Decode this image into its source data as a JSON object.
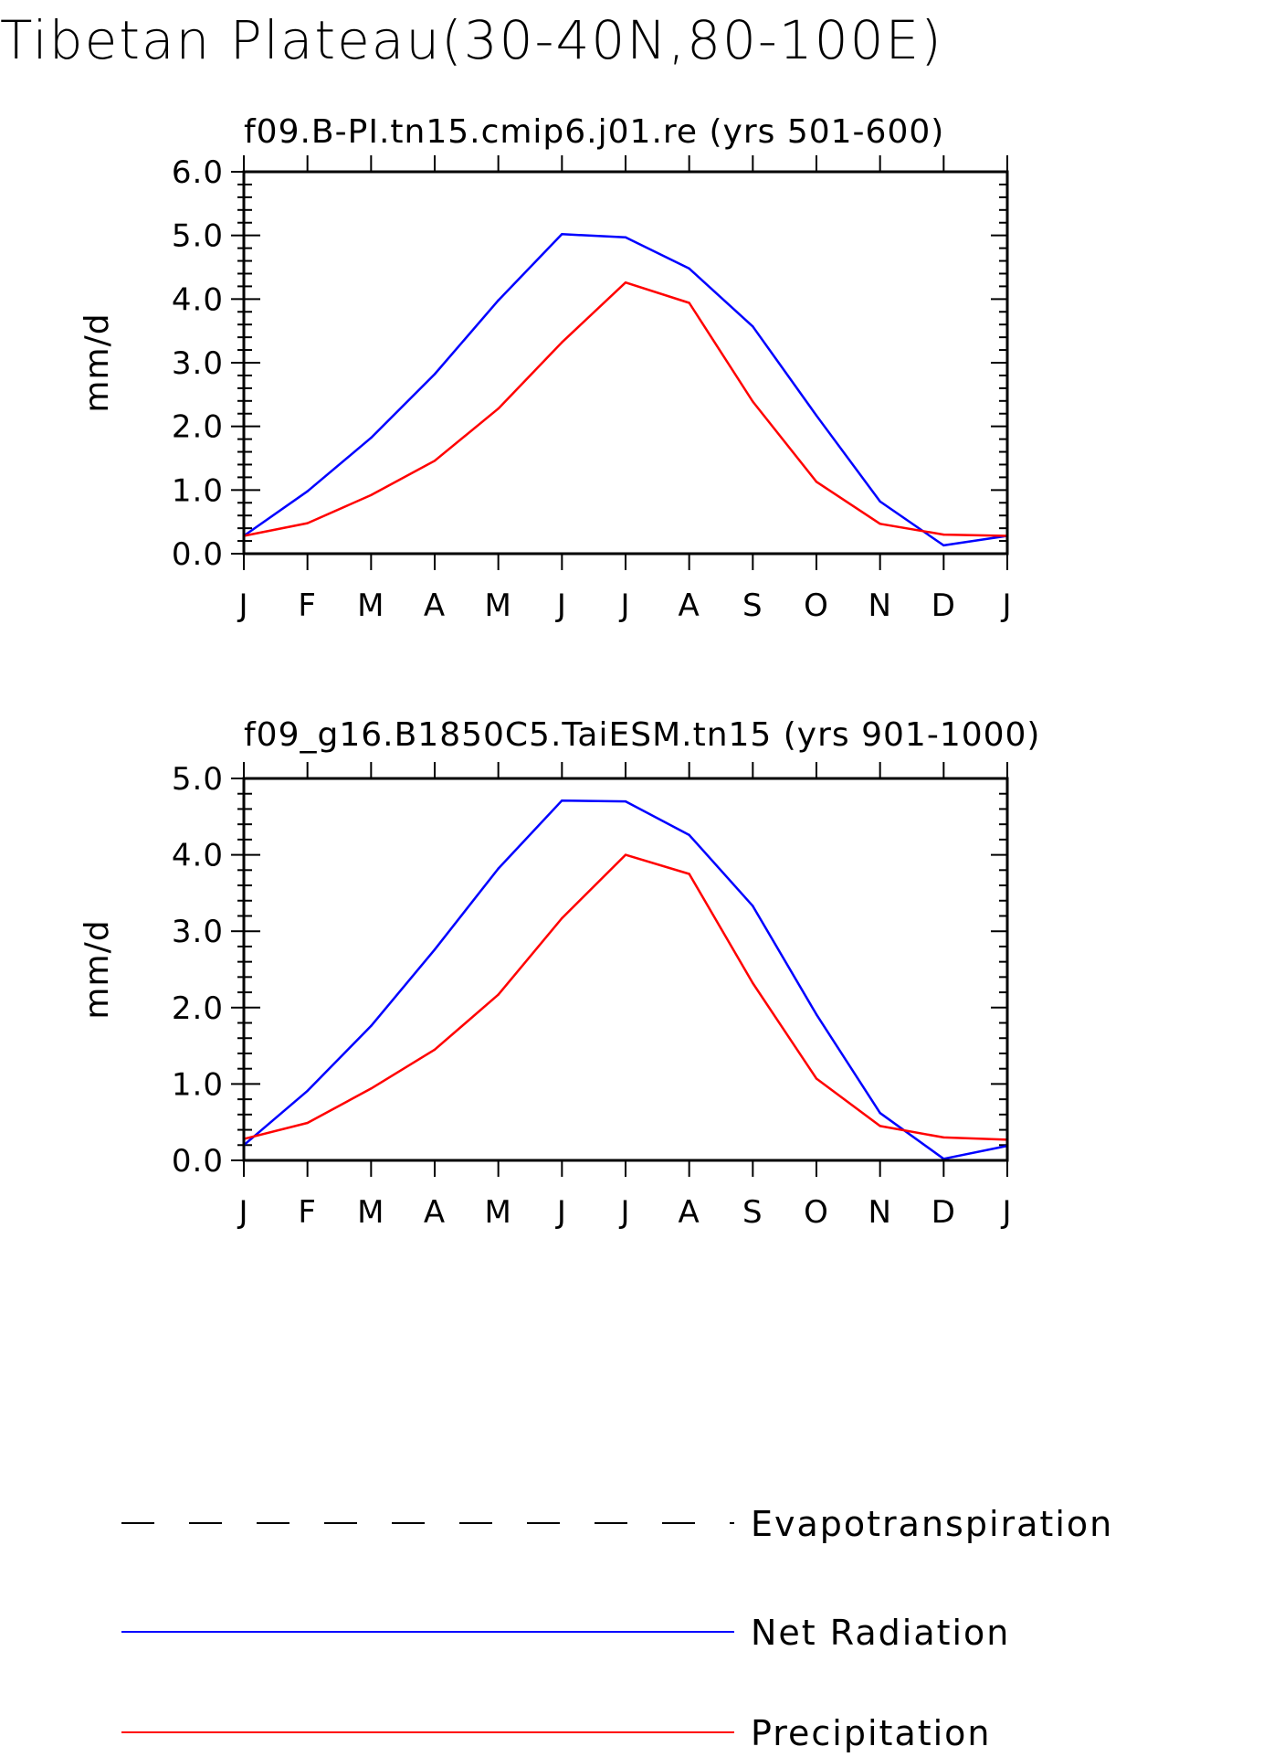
{
  "figure": {
    "title": "Tibetan Plateau(30-40N,80-100E)"
  },
  "colors": {
    "evapotranspiration": "#000000",
    "net_radiation": "#0000ff",
    "precipitation": "#ff0000",
    "axes": "#000000"
  },
  "legend": {
    "placement": "bottom",
    "items": [
      {
        "label": "Evapotranspiration",
        "color": "#000000",
        "style": "dashed"
      },
      {
        "label": "Net Radiation",
        "color": "#0000ff",
        "style": "solid"
      },
      {
        "label": "Precipitation",
        "color": "#ff0000",
        "style": "solid"
      }
    ]
  },
  "chart_data": [
    {
      "type": "line",
      "title": "f09.B-PI.tn15.cmip6.j01.re (yrs 501-600)",
      "xlabel": "",
      "ylabel": "mm/d",
      "categories": [
        "J",
        "F",
        "M",
        "A",
        "M",
        "J",
        "J",
        "A",
        "S",
        "O",
        "N",
        "D",
        "J"
      ],
      "ylim": [
        0,
        6
      ],
      "yticks": [
        "0.0",
        "1.0",
        "2.0",
        "3.0",
        "4.0",
        "5.0",
        "6.0"
      ],
      "grid": false,
      "series": [
        {
          "name": "Net Radiation",
          "color": "#0000ff",
          "values": [
            0.28,
            0.98,
            1.82,
            2.82,
            3.98,
            5.02,
            4.97,
            4.48,
            3.57,
            2.17,
            0.82,
            0.13,
            0.28
          ]
        },
        {
          "name": "Precipitation",
          "color": "#ff0000",
          "values": [
            0.28,
            0.48,
            0.92,
            1.46,
            2.28,
            3.32,
            4.26,
            3.94,
            2.39,
            1.13,
            0.47,
            0.3,
            0.28
          ]
        }
      ]
    },
    {
      "type": "line",
      "title": "f09_g16.B1850C5.TaiESM.tn15 (yrs 901-1000)",
      "xlabel": "",
      "ylabel": "mm/d",
      "categories": [
        "J",
        "F",
        "M",
        "A",
        "M",
        "J",
        "J",
        "A",
        "S",
        "O",
        "N",
        "D",
        "J"
      ],
      "ylim": [
        0,
        5
      ],
      "yticks": [
        "0.0",
        "1.0",
        "2.0",
        "3.0",
        "4.0",
        "5.0"
      ],
      "grid": false,
      "series": [
        {
          "name": "Net Radiation",
          "color": "#0000ff",
          "values": [
            0.2,
            0.91,
            1.76,
            2.76,
            3.82,
            4.71,
            4.7,
            4.26,
            3.33,
            1.91,
            0.62,
            0.02,
            0.19
          ]
        },
        {
          "name": "Precipitation",
          "color": "#ff0000",
          "values": [
            0.28,
            0.49,
            0.94,
            1.45,
            2.17,
            3.17,
            4.0,
            3.75,
            2.32,
            1.07,
            0.45,
            0.3,
            0.27
          ]
        }
      ]
    }
  ]
}
